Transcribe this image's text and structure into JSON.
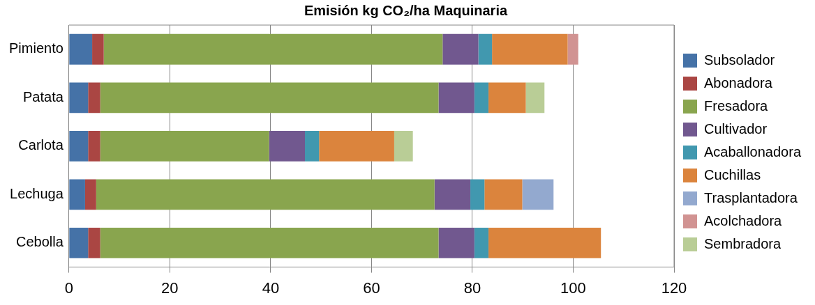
{
  "chart_data": {
    "type": "bar",
    "title": "Emisión kg CO₂/ha Maquinaria",
    "orientation": "horizontal",
    "stacked": true,
    "categories": [
      "Pimiento",
      "Patata",
      "Carlota",
      "Lechuga",
      "Cebolla"
    ],
    "series": [
      {
        "name": "Subsolador",
        "color": "#4572a7",
        "values": [
          4.6,
          3.8,
          3.8,
          3.2,
          3.8
        ]
      },
      {
        "name": "Abonadora",
        "color": "#aa4643",
        "values": [
          2.3,
          2.4,
          2.4,
          2.2,
          2.4
        ]
      },
      {
        "name": "Fresadora",
        "color": "#89a54e",
        "values": [
          67.2,
          67.1,
          33.5,
          67.1,
          67.1
        ]
      },
      {
        "name": "Cultivador",
        "color": "#71588f",
        "values": [
          7.1,
          7.1,
          7.1,
          7.1,
          7.1
        ]
      },
      {
        "name": "Acaballonadora",
        "color": "#4198af",
        "values": [
          2.7,
          2.8,
          2.8,
          2.8,
          2.8
        ]
      },
      {
        "name": "Cuchillas",
        "color": "#db843d",
        "values": [
          15.0,
          7.4,
          14.9,
          7.5,
          22.3
        ]
      },
      {
        "name": "Trasplantadora",
        "color": "#93a9cf",
        "values": [
          null,
          null,
          null,
          6.2,
          null
        ]
      },
      {
        "name": "Acolchadora",
        "color": "#d19392",
        "values": [
          2.1,
          null,
          null,
          null,
          null
        ]
      },
      {
        "name": "Sembradora",
        "color": "#b9cd96",
        "values": [
          null,
          3.7,
          3.7,
          null,
          null
        ]
      }
    ],
    "xlim": [
      0,
      120
    ],
    "xticks": [
      0,
      20,
      40,
      60,
      80,
      100,
      120
    ],
    "grid": "x",
    "legend": "right"
  }
}
